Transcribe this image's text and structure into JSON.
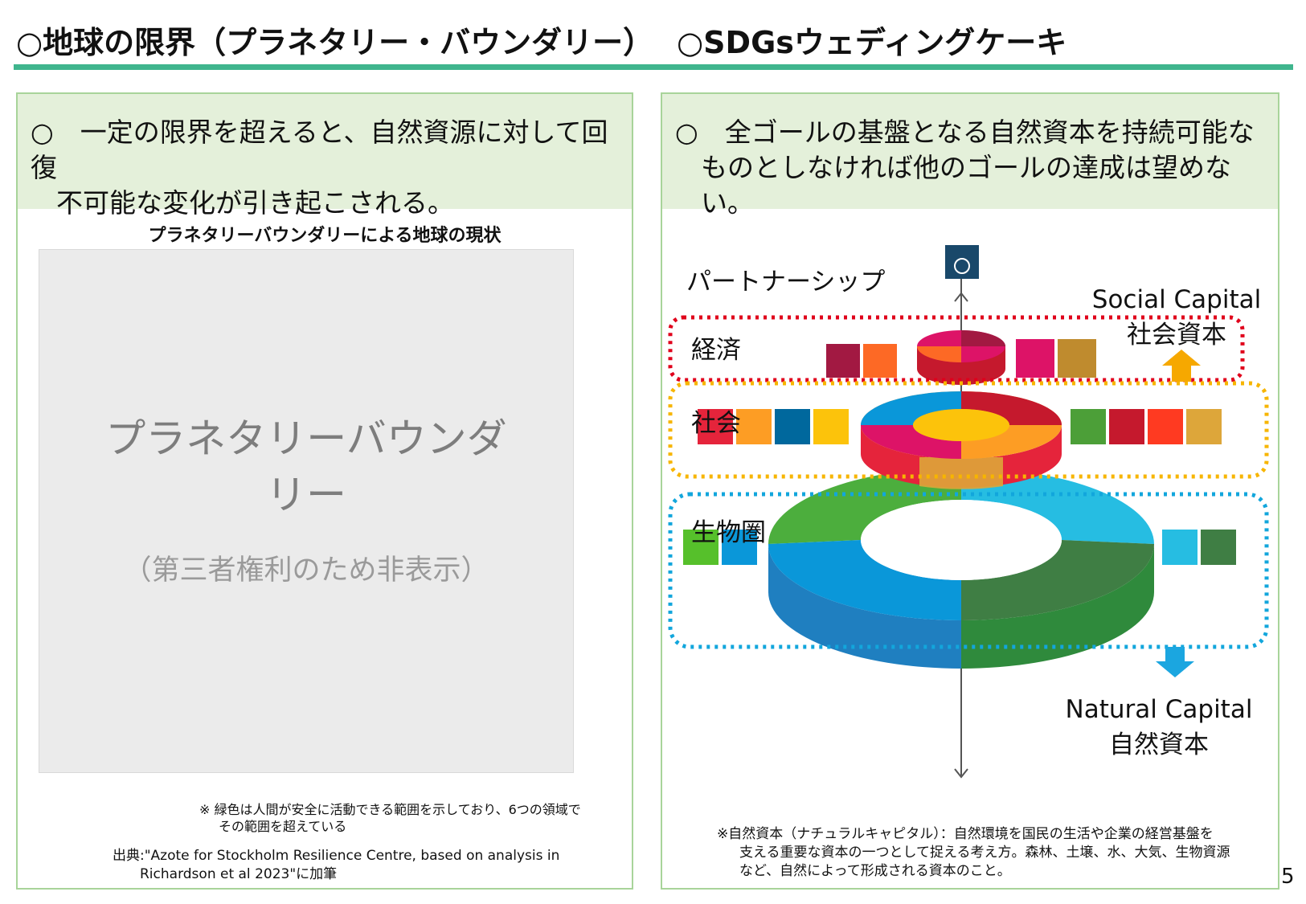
{
  "page": {
    "left_heading": "○地球の限界（プラネタリー・バウンダリー）",
    "right_heading": "○SDGsウェディングケーキ",
    "page_number": "5"
  },
  "left_panel": {
    "lead_line1": "○　一定の限界を超えると、自然資源に対して回復",
    "lead_line2": "不可能な変化が引き起こされる。",
    "chart_title": "プラネタリーバウンダリーによる地球の現状",
    "placeholder_line1": "プラネタリーバウンダ",
    "placeholder_line2": "リー",
    "placeholder_note": "（第三者権利のため非表示）",
    "note_line1": "※ 緑色は人間が安全に活動できる範囲を示しており、6つの領域で",
    "note_line2": "その範囲を超えている",
    "source_line1": "出典:\"Azote for Stockholm Resilience Centre, based on analysis in",
    "source_line2": "Richardson et al 2023\"に加筆"
  },
  "right_panel": {
    "lead_line1": "○　全ゴールの基盤となる自然資本を持続可能な",
    "lead_line2": "ものとしなければ他のゴールの達成は望めない。",
    "partnership_label": "パートナーシップ",
    "economy_label": "経済",
    "society_label": "社会",
    "biosphere_label": "生物圏",
    "social_capital_en": "Social Capital",
    "social_capital_ja": "社会資本",
    "natural_capital_en": "Natural Capital",
    "natural_capital_ja": "自然資本",
    "note_line1": "※自然資本（ナチュラルキャピタル）：自然環境を国民の生活や企業の経営基盤を",
    "note_line2": "支える重要な資本の一つとして捉える考え方。森林、土壌、水、大気、生物資源",
    "note_line3": "など、自然によって形成される資本のこと。",
    "colors": {
      "economy_box": "#e0001b",
      "society_box": "#f7b500",
      "biosphere_box": "#12a6dc",
      "up_arrow": "#f6a800",
      "down_arrow": "#1ba6e0"
    },
    "goal_icons": {
      "partnership": [
        "17"
      ],
      "economy_left": [
        "8",
        "9"
      ],
      "economy_right": [
        "10",
        "12"
      ],
      "society_left": [
        "1",
        "11",
        "16",
        "7"
      ],
      "society_right": [
        "3",
        "4",
        "5",
        "2"
      ],
      "biosphere_left": [
        "15",
        "14"
      ],
      "biosphere_right": [
        "6",
        "13"
      ]
    }
  }
}
